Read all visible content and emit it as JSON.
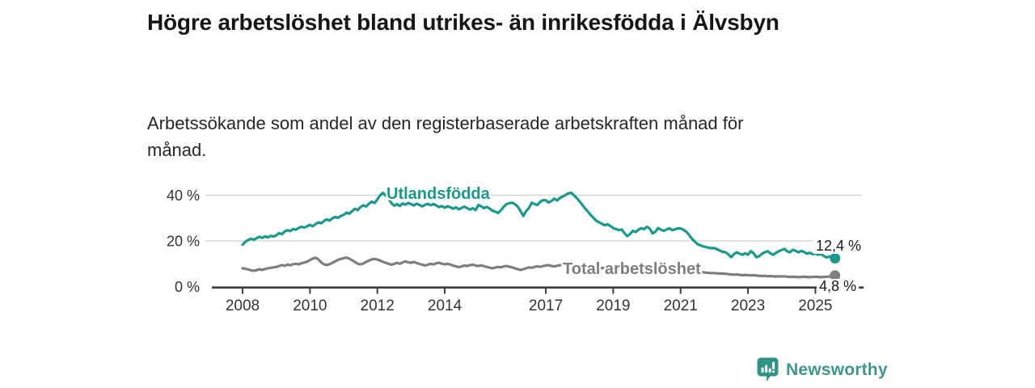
{
  "header": {
    "title": "Högre arbetslöshet bland utrikes- än inrikesfödda i Älvsbyn",
    "subtitle": "Arbetssökande som andel av den registerbaserade arbetskraften månad för månad."
  },
  "footer": {
    "brand": "Newsworthy",
    "logo_icon": "bar-chart-speech-bubble-icon",
    "brand_text_color": "#3E968C",
    "brand_icon_color": "#2F9488"
  },
  "colors": {
    "axis": "#3D3D3D",
    "grid": "#D8D8D8",
    "tick_text": "#333333"
  },
  "chart_data": {
    "type": "line",
    "title": "Högre arbetslöshet bland utrikes- än inrikesfödda i Älvsbyn",
    "xlabel": "",
    "ylabel": "",
    "y_unit": "%",
    "x_start": 2008.0,
    "x_step_months": 1,
    "x_end_label_period": "2025-08",
    "xlim": [
      2007.1,
      2026.4
    ],
    "ylim": [
      0,
      43
    ],
    "grid": "horizontal",
    "y_gridlines": [
      20,
      40
    ],
    "x_ticks": [
      2008,
      2010,
      2012,
      2014,
      2017,
      2019,
      2021,
      2023,
      2025
    ],
    "y_ticks": [
      {
        "value": 0,
        "label": "0 %"
      },
      {
        "value": 20,
        "label": "20 %"
      },
      {
        "value": 40,
        "label": "40 %"
      }
    ],
    "series": [
      {
        "name": "Utlandsfödda",
        "color": "#18998B",
        "end_label": "12,4 %",
        "end_value": 12.4,
        "values": [
          18.3,
          19.6,
          20.4,
          21.0,
          20.5,
          21.2,
          21.8,
          21.3,
          22.0,
          21.5,
          22.2,
          21.9,
          22.4,
          23.4,
          22.9,
          24.1,
          24.7,
          24.3,
          25.2,
          24.9,
          25.7,
          26.2,
          25.8,
          26.4,
          27.0,
          26.4,
          27.4,
          28.1,
          27.7,
          28.7,
          29.4,
          28.9,
          29.9,
          30.5,
          30.1,
          30.9,
          31.4,
          32.4,
          31.9,
          33.0,
          34.1,
          33.5,
          34.8,
          35.6,
          35.0,
          36.3,
          37.2,
          36.6,
          38.2,
          40.0,
          41.0,
          39.8,
          38.3,
          36.6,
          35.4,
          36.1,
          35.3,
          36.4,
          35.9,
          36.6,
          36.1,
          35.5,
          36.3,
          35.7,
          35.1,
          35.8,
          36.2,
          35.6,
          36.1,
          35.5,
          34.8,
          35.3,
          34.5,
          35.2,
          34.7,
          34.1,
          34.7,
          33.8,
          34.4,
          35.0,
          34.3,
          33.7,
          34.3,
          33.5,
          35.7,
          35.1,
          34.3,
          34.9,
          34.1,
          33.2,
          32.8,
          32.2,
          33.4,
          34.9,
          36.1,
          36.5,
          36.7,
          36.1,
          35.0,
          33.0,
          30.9,
          33.1,
          34.4,
          36.7,
          36.1,
          35.7,
          37.1,
          37.8,
          37.8,
          36.8,
          37.5,
          38.5,
          37.7,
          38.8,
          39.4,
          40.1,
          40.8,
          41.1,
          40.0,
          38.8,
          37.3,
          35.8,
          34.2,
          32.8,
          31.3,
          30.0,
          28.8,
          28.1,
          27.5,
          26.8,
          27.3,
          26.5,
          25.6,
          25.2,
          24.7,
          25.0,
          23.4,
          22.1,
          23.0,
          24.4,
          23.9,
          24.9,
          25.6,
          25.1,
          26.2,
          25.4,
          23.3,
          24.0,
          25.6,
          24.9,
          24.4,
          25.0,
          25.5,
          24.7,
          25.1,
          25.5,
          25.4,
          24.9,
          24.0,
          22.7,
          21.0,
          19.8,
          18.6,
          18.1,
          17.6,
          17.3,
          17.0,
          16.8,
          16.9,
          16.3,
          15.7,
          15.2,
          15.0,
          14.1,
          12.9,
          14.2,
          15.0,
          14.4,
          13.9,
          14.6,
          13.9,
          15.5,
          14.6,
          12.8,
          13.3,
          14.4,
          15.0,
          15.5,
          14.5,
          13.9,
          14.8,
          15.5,
          16.0,
          16.5,
          15.4,
          15.0,
          16.1,
          15.6,
          15.0,
          15.6,
          15.1,
          14.4,
          14.8,
          14.2,
          14.4,
          13.9,
          14.3,
          13.4,
          12.7,
          13.2,
          12.9,
          12.4
        ]
      },
      {
        "name": "Total arbetslöshet",
        "color": "#7E7E7E",
        "end_label": "4,8 %",
        "end_value": 4.8,
        "values": [
          8.0,
          7.8,
          7.5,
          7.1,
          6.9,
          7.2,
          7.6,
          7.3,
          7.7,
          8.0,
          8.2,
          8.4,
          8.6,
          9.0,
          9.4,
          9.1,
          9.6,
          9.3,
          9.8,
          10.0,
          9.7,
          10.2,
          10.5,
          10.9,
          11.6,
          12.3,
          12.6,
          11.9,
          10.6,
          9.7,
          9.4,
          9.8,
          10.4,
          11.0,
          11.7,
          12.1,
          12.4,
          12.7,
          12.2,
          11.5,
          10.8,
          10.0,
          9.7,
          10.1,
          10.8,
          11.4,
          11.9,
          12.1,
          11.8,
          11.4,
          10.8,
          10.4,
          10.0,
          9.6,
          9.9,
          10.4,
          10.0,
          10.6,
          11.0,
          10.6,
          10.4,
          10.8,
          10.3,
          9.9,
          9.6,
          9.2,
          9.6,
          10.0,
          9.7,
          10.2,
          10.4,
          10.0,
          9.7,
          10.0,
          9.6,
          9.2,
          8.8,
          8.5,
          8.8,
          9.2,
          9.0,
          9.4,
          9.6,
          9.2,
          9.0,
          9.3,
          8.9,
          8.6,
          8.3,
          8.0,
          8.3,
          8.6,
          8.4,
          8.8,
          9.0,
          8.7,
          8.4,
          8.0,
          7.6,
          7.3,
          7.6,
          8.0,
          8.4,
          8.2,
          8.6,
          8.9,
          8.6,
          9.0,
          9.2,
          9.4,
          9.0,
          8.8,
          9.1,
          9.3,
          9.5,
          9.4,
          9.2,
          9.1,
          9.0,
          8.9,
          8.8,
          8.7,
          8.6,
          8.5,
          8.4,
          8.3,
          8.2,
          8.2,
          8.1,
          8.1,
          8.0,
          8.0,
          8.0,
          8.0,
          7.9,
          7.9,
          7.8,
          7.8,
          7.8,
          7.8,
          7.8,
          7.8,
          7.8,
          7.9,
          8.0,
          8.1,
          8.3,
          8.4,
          8.4,
          8.4,
          8.3,
          8.2,
          8.1,
          8.0,
          7.9,
          7.8,
          7.7,
          7.6,
          7.4,
          7.2,
          7.0,
          6.8,
          6.6,
          6.4,
          6.3,
          6.1,
          6.0,
          5.9,
          5.9,
          5.8,
          5.7,
          5.7,
          5.6,
          5.4,
          5.3,
          5.2,
          5.3,
          5.1,
          5.0,
          5.1,
          5.0,
          4.9,
          5.0,
          4.8,
          4.7,
          4.6,
          4.7,
          4.5,
          4.6,
          4.5,
          4.4,
          4.5,
          4.4,
          4.5,
          4.3,
          4.2,
          4.3,
          4.2,
          4.1,
          4.2,
          4.3,
          4.2,
          4.1,
          4.2,
          4.3,
          4.2,
          4.1,
          4.2,
          4.3,
          4.4,
          4.6,
          4.8
        ]
      }
    ]
  }
}
